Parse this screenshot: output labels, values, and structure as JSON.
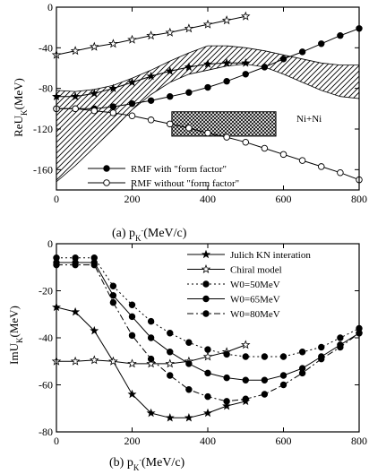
{
  "chart_data": [
    {
      "panel": "a",
      "type": "line",
      "caption": "(a)",
      "xlabel": "p_K-(MeV/c)",
      "ylabel": "ReU_K(MeV)",
      "xlim": [
        0,
        800
      ],
      "ylim": [
        -180,
        0
      ],
      "xticks": [
        0,
        200,
        400,
        600,
        800
      ],
      "yticks": [
        0,
        -40,
        -80,
        -120,
        -160
      ],
      "annotation": "Ni+Ni",
      "series": [
        {
          "name": "RMF with \"form factor\"",
          "marker": "filled-circle",
          "x": [
            0,
            50,
            100,
            150,
            200,
            250,
            300,
            350,
            400,
            450,
            500,
            550,
            600,
            650,
            700,
            750,
            800
          ],
          "y": [
            -100,
            -100,
            -100,
            -98,
            -95,
            -92,
            -88,
            -84,
            -79,
            -73,
            -66,
            -59,
            -51,
            -44,
            -36,
            -28,
            -21
          ]
        },
        {
          "name": "RMF without \"form factor\"",
          "marker": "open-circle",
          "x": [
            0,
            50,
            100,
            150,
            200,
            250,
            300,
            350,
            400,
            450,
            500,
            550,
            600,
            650,
            700,
            750,
            800
          ],
          "y": [
            -100,
            -100,
            -102,
            -104,
            -107,
            -111,
            -115,
            -119,
            -124,
            -128,
            -133,
            -139,
            -145,
            -151,
            -157,
            -163,
            -170
          ]
        },
        {
          "name": "",
          "marker": "star",
          "x": [
            0,
            50,
            100,
            150,
            200,
            250,
            300,
            350,
            400,
            450,
            500
          ],
          "y": [
            -47,
            -43,
            -39,
            -36,
            -32,
            -28,
            -25,
            -21,
            -17,
            -13,
            -9
          ]
        },
        {
          "name": "",
          "marker": "filled-star",
          "x": [
            0,
            50,
            100,
            150,
            200,
            250,
            300,
            350,
            400,
            450,
            500
          ],
          "y": [
            -88,
            -88,
            -85,
            -80,
            -74,
            -68,
            -63,
            -59,
            -56,
            -55,
            -55
          ]
        }
      ],
      "band": {
        "x": [
          0,
          50,
          100,
          150,
          200,
          250,
          300,
          350,
          400,
          450,
          500,
          550,
          600,
          650,
          700,
          750,
          800
        ],
        "upper": [
          -82,
          -83,
          -81,
          -77,
          -70,
          -62,
          -53,
          -45,
          -38,
          -38,
          -40,
          -43,
          -47,
          -51,
          -55,
          -57,
          -57
        ],
        "lower": [
          -172,
          -156,
          -138,
          -120,
          -101,
          -86,
          -74,
          -66,
          -62,
          -58,
          -56,
          -59,
          -66,
          -74,
          -82,
          -88,
          -90
        ]
      },
      "box": {
        "x": [
          305,
          580
        ],
        "y": [
          -103,
          -127
        ]
      }
    },
    {
      "panel": "b",
      "type": "line",
      "caption": "(b)",
      "xlabel": "p_K-(MeV/c)",
      "ylabel": "ImU_K(MeV)",
      "xlim": [
        0,
        800
      ],
      "ylim": [
        -80,
        0
      ],
      "xticks": [
        0,
        200,
        400,
        600,
        800
      ],
      "yticks": [
        0,
        -20,
        -40,
        -60,
        -80
      ],
      "series": [
        {
          "name": "Julich KN interation",
          "marker": "filled-star",
          "x": [
            0,
            50,
            100,
            150,
            200,
            250,
            300,
            350,
            400,
            450,
            500
          ],
          "y": [
            -27,
            -29,
            -37,
            -50,
            -64,
            -72,
            -74,
            -74,
            -72,
            -69,
            -67
          ]
        },
        {
          "name": "Chiral model",
          "marker": "star",
          "x": [
            0,
            50,
            100,
            150,
            200,
            250,
            300,
            350,
            400,
            450,
            500
          ],
          "y": [
            -50,
            -50,
            -49.5,
            -50,
            -51,
            -51,
            -51,
            -50,
            -48,
            -46,
            -43
          ]
        },
        {
          "name": "W0=50MeV",
          "marker": "filled-circle",
          "x": [
            0,
            50,
            100,
            150,
            200,
            250,
            300,
            350,
            400,
            450,
            500,
            550,
            600,
            650,
            700,
            750,
            800
          ],
          "y": [
            -6,
            -6,
            -6,
            -18,
            -26,
            -33,
            -38,
            -42,
            -45,
            -47,
            -48,
            -48,
            -48,
            -46,
            -44,
            -40,
            -36
          ]
        },
        {
          "name": "W0=65MeV",
          "marker": "filled-circle",
          "x": [
            0,
            50,
            100,
            150,
            200,
            250,
            300,
            350,
            400,
            450,
            500,
            550,
            600,
            650,
            700,
            750,
            800
          ],
          "y": [
            -8,
            -8,
            -8,
            -22,
            -31,
            -40,
            -46,
            -51,
            -55,
            -57,
            -58,
            -58,
            -56,
            -53,
            -48,
            -43,
            -38
          ]
        },
        {
          "name": "W0=80MeV",
          "marker": "filled-circle",
          "x": [
            0,
            50,
            100,
            150,
            200,
            250,
            300,
            350,
            400,
            450,
            500,
            550,
            600,
            650,
            700,
            750,
            800
          ],
          "y": [
            -9,
            -9,
            -9,
            -25,
            -39,
            -49,
            -56,
            -62,
            -65,
            -67,
            -66,
            -64,
            -60,
            -55,
            -49,
            -44,
            -38
          ]
        }
      ]
    }
  ]
}
